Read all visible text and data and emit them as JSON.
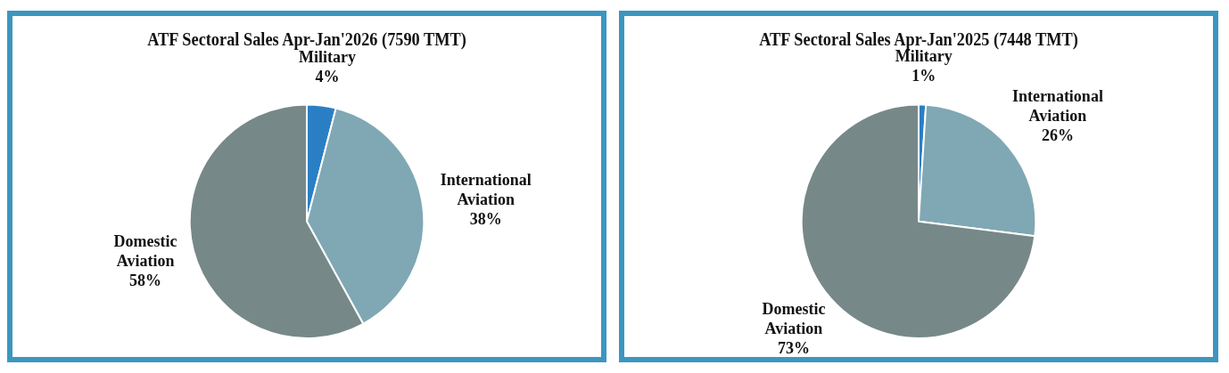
{
  "chart_data": [
    {
      "type": "pie",
      "title": "ATF Sectoral Sales Apr-Jan'2026 (7590 TMT)",
      "categories": [
        "Military",
        "International Aviation",
        "Domestic Aviation"
      ],
      "values": [
        4,
        38,
        58
      ],
      "value_labels": [
        "4%",
        "38%",
        "58%"
      ],
      "colors": [
        "#2a7fc4",
        "#7fa8b4",
        "#778889"
      ],
      "legend": false
    },
    {
      "type": "pie",
      "title": "ATF Sectoral Sales Apr-Jan'2025 (7448 TMT)",
      "categories": [
        "Military",
        "International Aviation",
        "Domestic Aviation"
      ],
      "values": [
        1,
        26,
        73
      ],
      "value_labels": [
        "1%",
        "26%",
        "73%"
      ],
      "colors": [
        "#2a7fc4",
        "#7fa8b4",
        "#778889"
      ],
      "legend": false
    }
  ]
}
